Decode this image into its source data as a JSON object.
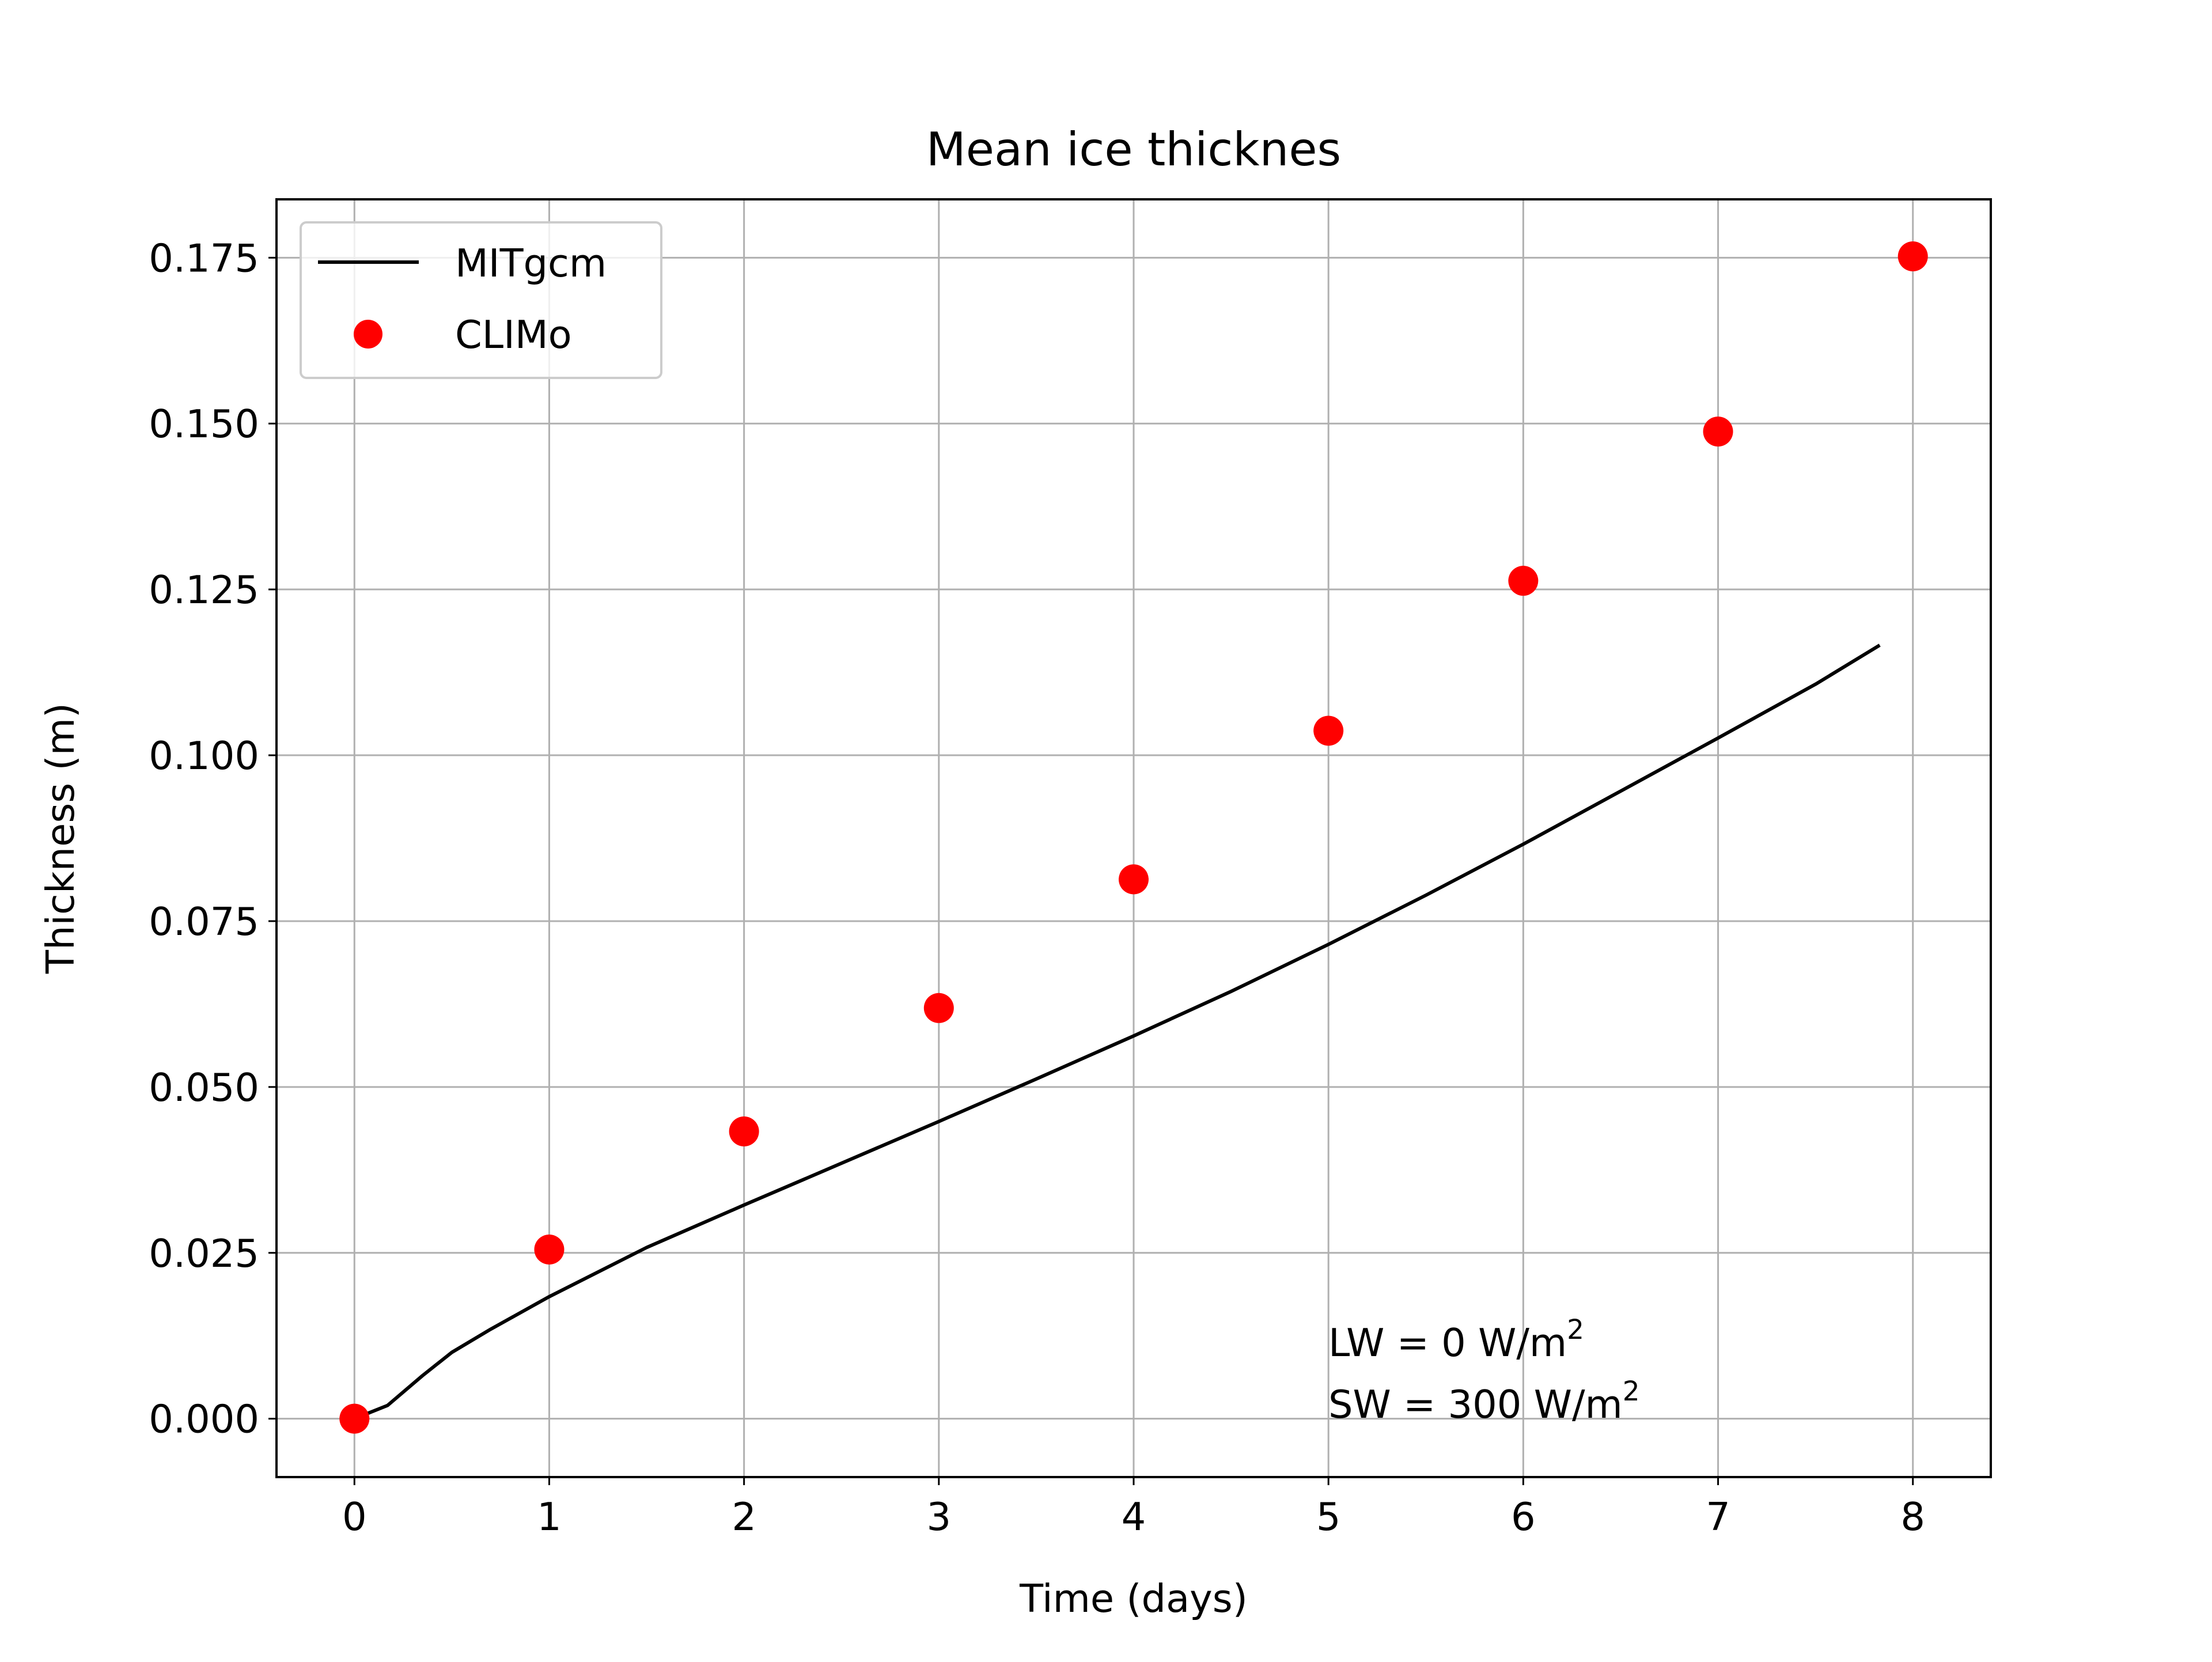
{
  "chart_data": {
    "type": "line",
    "title": "Mean ice thicknes",
    "xlabel": "Time (days)",
    "ylabel": "Thickness (m)",
    "xlim": [
      -0.4,
      8.4
    ],
    "ylim": [
      -0.0088,
      0.1838
    ],
    "xticks": [
      0,
      1,
      2,
      3,
      4,
      5,
      6,
      7,
      8
    ],
    "xtick_labels": [
      "0",
      "1",
      "2",
      "3",
      "4",
      "5",
      "6",
      "7",
      "8"
    ],
    "yticks": [
      0,
      0.025,
      0.05,
      0.075,
      0.1,
      0.125,
      0.15,
      0.175
    ],
    "ytick_labels": [
      "0.000",
      "0.025",
      "0.050",
      "0.075",
      "0.100",
      "0.125",
      "0.150",
      "0.175"
    ],
    "grid": true,
    "legend": {
      "placement": "upper-left"
    },
    "series": [
      {
        "name": "MITgcm",
        "style": "line",
        "color": "#000000",
        "x": [
          0,
          0.17,
          0.35,
          0.5,
          0.7,
          1.0,
          1.5,
          2.0,
          2.5,
          3.0,
          3.5,
          4.0,
          4.5,
          5.0,
          5.5,
          6.0,
          6.5,
          7.0,
          7.5,
          7.83
        ],
        "y": [
          0,
          0.002,
          0.0065,
          0.01,
          0.0135,
          0.0184,
          0.0258,
          0.0322,
          0.0385,
          0.0448,
          0.0512,
          0.0577,
          0.0644,
          0.0715,
          0.0789,
          0.0866,
          0.0946,
          0.1026,
          0.1107,
          0.1166
        ]
      },
      {
        "name": "CLIMo",
        "style": "markers",
        "color": "#ff0000",
        "x": [
          0,
          1,
          2,
          3,
          4,
          5,
          6,
          7,
          8
        ],
        "y": [
          0.0,
          0.0255,
          0.0433,
          0.0619,
          0.0813,
          0.1037,
          0.1263,
          0.1488,
          0.1752
        ]
      }
    ],
    "annotation": {
      "line1": "LW = 0 W/m",
      "line1_sup": "2",
      "line2": "SW = 300 W/m",
      "line2_sup": "2"
    }
  }
}
